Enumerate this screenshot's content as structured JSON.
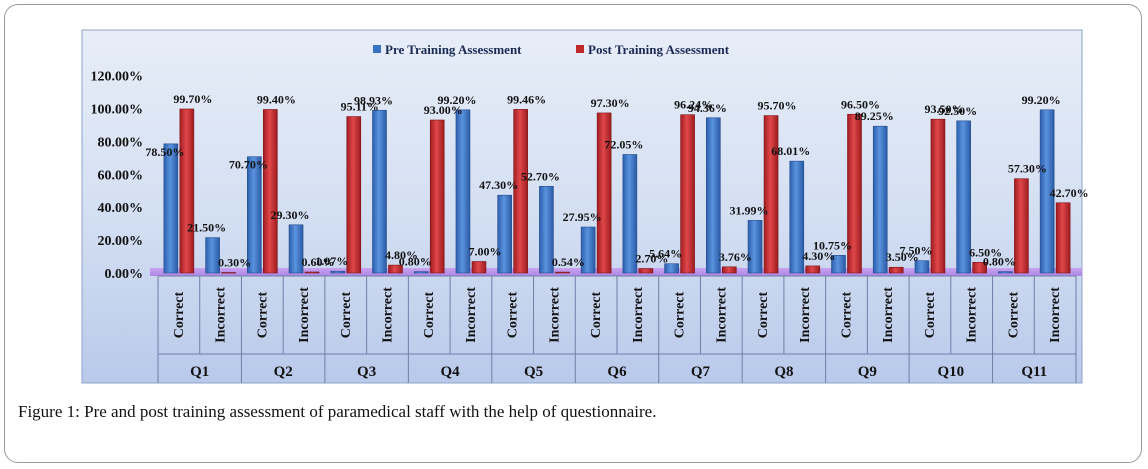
{
  "chart_data": {
    "type": "bar",
    "groups": [
      "Q1",
      "Q2",
      "Q3",
      "Q4",
      "Q5",
      "Q6",
      "Q7",
      "Q8",
      "Q9",
      "Q10",
      "Q11"
    ],
    "subcategories": [
      "Correct",
      "Incorrect"
    ],
    "categories": [
      "Q1 Correct",
      "Q1 Incorrect",
      "Q2 Correct",
      "Q2 Incorrect",
      "Q3 Correct",
      "Q3 Incorrect",
      "Q4 Correct",
      "Q4 Incorrect",
      "Q5 Correct",
      "Q5 Incorrect",
      "Q6 Correct",
      "Q6 Incorrect",
      "Q7 Correct",
      "Q7 Incorrect",
      "Q8 Correct",
      "Q8 Incorrect",
      "Q9 Correct",
      "Q9 Incorrect",
      "Q10 Correct",
      "Q10 Incorrect",
      "Q11 Correct",
      "Q11 Incorrect"
    ],
    "series": [
      {
        "name": "Pre Training Assessment",
        "color": "#3a73c4",
        "values": [
          78.5,
          21.5,
          70.7,
          29.3,
          1.07,
          98.93,
          0.8,
          99.2,
          47.3,
          52.7,
          27.95,
          72.05,
          5.64,
          94.36,
          31.99,
          68.01,
          10.75,
          89.25,
          7.5,
          92.5,
          0.8,
          99.2
        ],
        "labels": [
          "78.50%",
          "21.50%",
          "70.70%",
          "29.30%",
          "1.07%",
          "98.93%",
          "0.80%",
          "99.20%",
          "47.30%",
          "52.70%",
          "27.95%",
          "72.05%",
          "5.64%",
          "94.36%",
          "31.99%",
          "68.01%",
          "10.75%",
          "89.25%",
          "7.50%",
          "92.50%",
          "0.80%",
          "99.20%"
        ]
      },
      {
        "name": "Post Training Assessment",
        "color": "#c0282a",
        "values": [
          99.7,
          0.3,
          99.4,
          0.6,
          95.11,
          4.8,
          93.0,
          7.0,
          99.46,
          0.54,
          97.3,
          2.7,
          96.24,
          3.76,
          95.7,
          4.3,
          96.5,
          3.5,
          93.5,
          6.5,
          57.3,
          42.7
        ],
        "labels": [
          "99.70%",
          "0.30%",
          "99.40%",
          "0.60%",
          "95.11%",
          "4.80%",
          "93.00%",
          "7.00%",
          "99.46%",
          "0.54%",
          "97.30%",
          "2.70%",
          "96.24%",
          "3.76%",
          "95.70%",
          "4.30%",
          "96.50%",
          "3.50%",
          "93.50%",
          "6.50%",
          "57.30%",
          "42.70%"
        ]
      }
    ],
    "yticks": [
      "0.00%",
      "20.00%",
      "40.00%",
      "60.00%",
      "80.00%",
      "100.00%",
      "120.00%"
    ],
    "ylim": [
      0,
      120
    ],
    "grid": false,
    "legend": "top-center",
    "title": "",
    "xlabel": "",
    "ylabel": ""
  },
  "caption": {
    "label": "Figure 1:",
    "text": " Pre and post training assessment of paramedical staff with the help of questionnaire."
  }
}
